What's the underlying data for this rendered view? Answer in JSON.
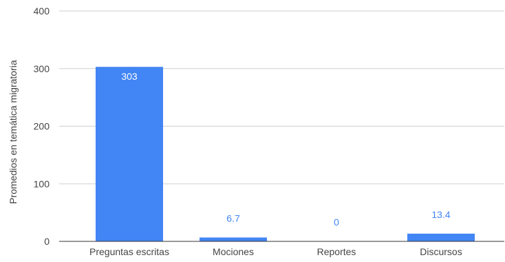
{
  "chart_data": {
    "type": "bar",
    "title": "",
    "xlabel": "",
    "ylabel": "Promedios en temática migratoria",
    "categories": [
      "Preguntas escritas",
      "Mociones",
      "Reportes",
      "Discursos"
    ],
    "values": [
      303,
      6.7,
      0,
      13.4
    ],
    "value_labels": [
      "303",
      "6.7",
      "0",
      "13.4"
    ],
    "ylim": [
      0,
      400
    ],
    "yticks": [
      0,
      100,
      200,
      300,
      400
    ],
    "ytick_labels": [
      "0",
      "100",
      "200",
      "300",
      "400"
    ],
    "grid": true,
    "legend": "none",
    "colors": {
      "bar": "#4285f4",
      "label_inside": "#ffffff",
      "label_outside": "#4285f4",
      "grid": "#cfcfcf",
      "axis": "#333333",
      "tick_text": "#444444"
    }
  }
}
